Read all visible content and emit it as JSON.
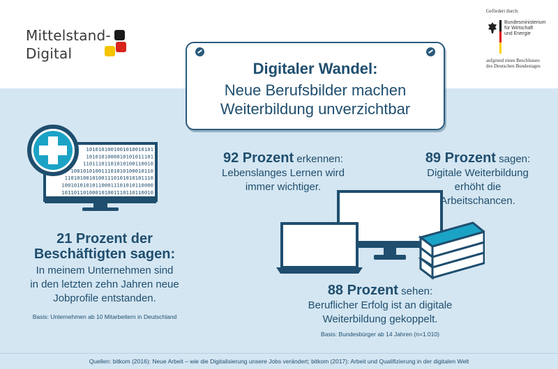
{
  "logo": {
    "line1": "Mittelstand-",
    "line2": "Digital",
    "colors": [
      "#1a1a1a",
      "#d9241b",
      "#f5c400"
    ]
  },
  "funding": {
    "label": "Gefördert durch:",
    "ministry_lines": [
      "Bundesministerium",
      "für Wirtschaft",
      "und Energie"
    ],
    "decision_lines": [
      "aufgrund eines Beschlusses",
      "des Deutschen Bundestages"
    ],
    "flag_colors": [
      "#000000",
      "#dd0000",
      "#ffce00"
    ]
  },
  "title": {
    "line1": "Digitaler Wandel:",
    "line2": "Neue  Berufsbilder machen",
    "line3": "Weiterbildung unverzichtbar"
  },
  "stat_left": {
    "headline1": "21 Prozent der",
    "headline2": "Beschäftigten sagen:",
    "text": [
      "In meinem Unternehmen sind",
      "in den letzten zehn Jahren neue",
      "Jobprofile entstanden."
    ],
    "basis": "Basis: Unternehmen ab 10 Mitarbeitern in Deutschland"
  },
  "stat_92": {
    "headline": "92 Prozent",
    "verb": " erkennen:",
    "text": [
      "Lebenslanges Lernen wird",
      "immer wichtiger."
    ]
  },
  "stat_89": {
    "headline": "89 Prozent",
    "verb": " sagen:",
    "text": [
      "Digitale Weiterbildung",
      "erhöht die",
      "Arbeitschancen."
    ]
  },
  "stat_88": {
    "headline": "88 Prozent",
    "verb": " sehen:",
    "text": [
      "Beruflicher Erfolg ist an digitale",
      "Weiterbildung gekoppelt."
    ],
    "basis": "Basis: Bundesbürger ab 14 Jahren (n=1.010)"
  },
  "binary_lines": [
    "1010101001001010010101",
    "1010101000010101011101",
    "11011101101010100110010",
    "100101010011101010100010110",
    "11010100101001110101010101110",
    "100101010101100011101010110000",
    "101101101000101001110110110010"
  ],
  "footer": "Quellen: bitkom (2016): Neue Arbeit – wie die Digitalisierung unsere Jobs verändert; bitkom (2017): Arbeit und Qualifizierung in der digitalen Welt",
  "colors": {
    "navy": "#1f4e6e",
    "accent": "#1ba3c6",
    "background": "#d4e6f2"
  }
}
